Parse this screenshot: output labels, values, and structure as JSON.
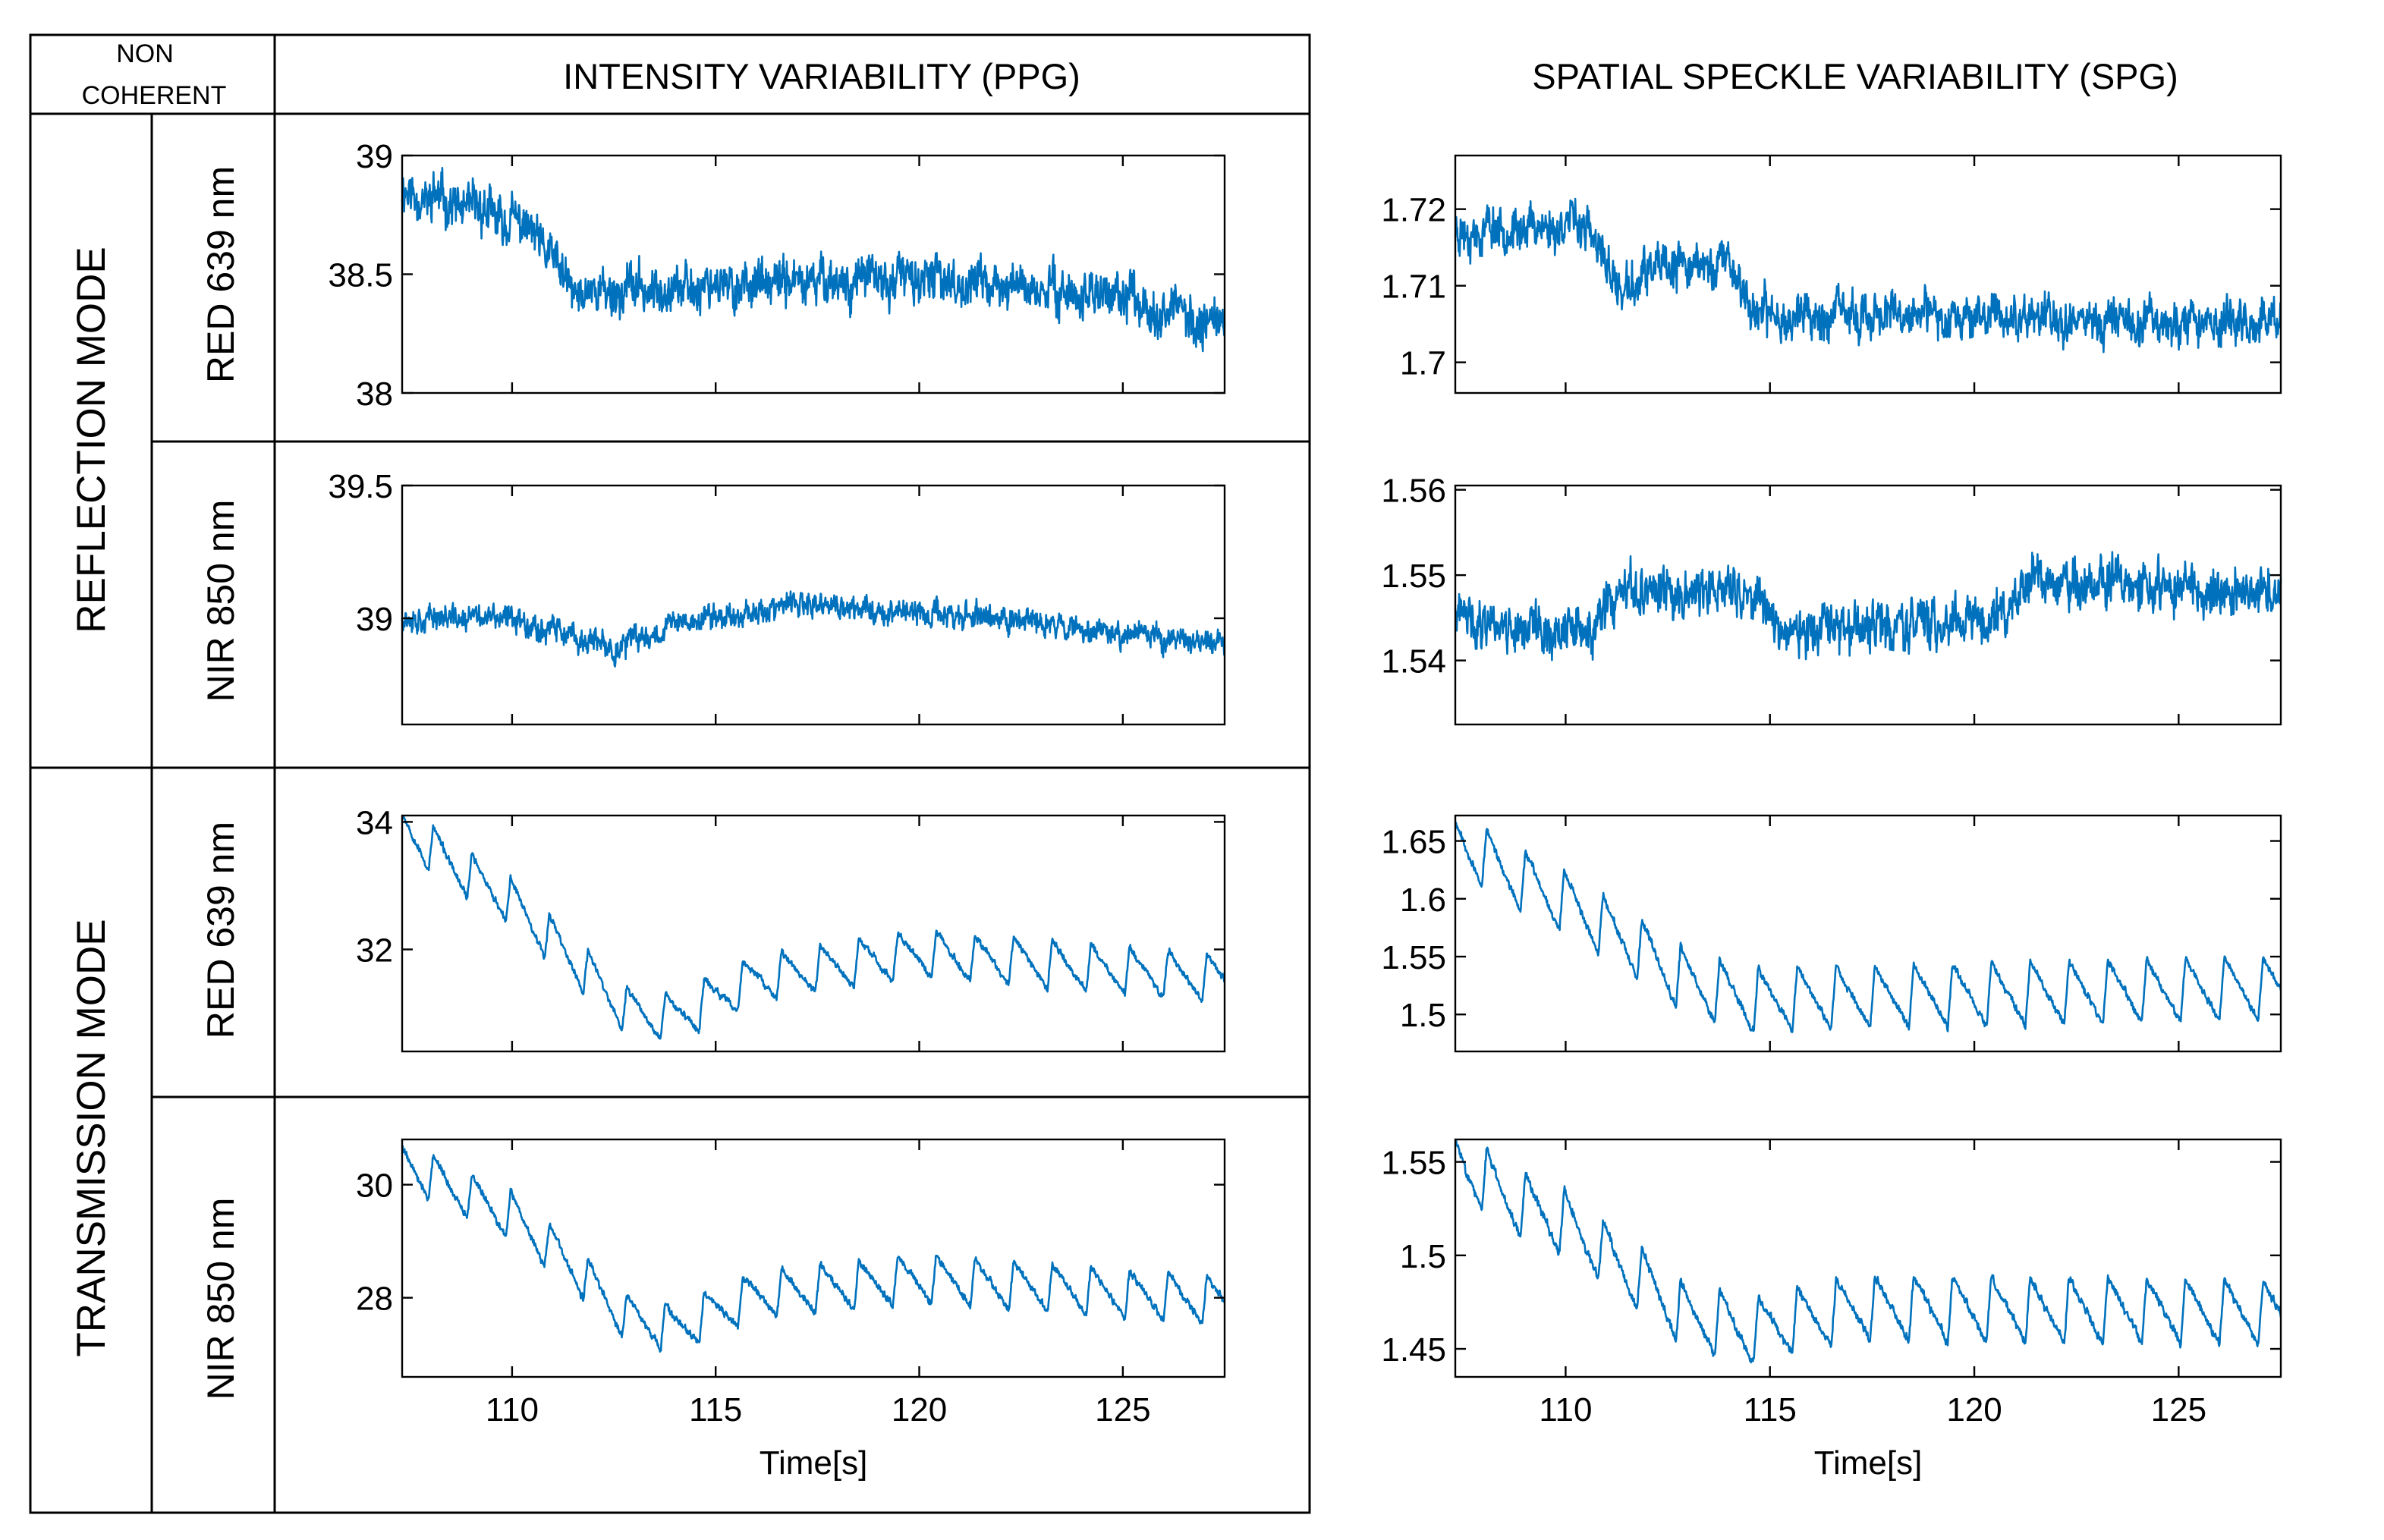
{
  "corner_label": [
    "NON",
    "COHERENT"
  ],
  "column_headers": [
    "INTENSITY VARIABILITY (PPG)",
    "SPATIAL SPECKLE VARIABILITY (SPG)"
  ],
  "mode_labels": [
    "REFLECTION MODE",
    "TRANSMISSION MODE"
  ],
  "wavelength_labels": [
    "RED 639 nm",
    "NIR 850 nm",
    "RED 639 nm",
    "NIR 850 nm"
  ],
  "colors": {
    "series": "#0072BD",
    "axis": "#000000",
    "background": "#ffffff"
  },
  "chart_data": [
    {
      "type": "line",
      "panel": "reflection-red-ppg",
      "mode": "REFLECTION MODE",
      "wavelength": "RED 639 nm",
      "signal": "INTENSITY VARIABILITY (PPG)",
      "xlim": [
        107.3,
        127.5
      ],
      "ylim": [
        38.0,
        39.0
      ],
      "yticks": [
        38,
        38.5,
        39
      ],
      "ytick_labels": [
        "38",
        "38.5",
        "39"
      ],
      "xticks": [
        110,
        115,
        120,
        125
      ],
      "trend": [
        [
          107.3,
          38.85
        ],
        [
          109.5,
          38.75
        ],
        [
          110.5,
          38.68
        ],
        [
          111.5,
          38.42
        ],
        [
          115,
          38.45
        ],
        [
          120,
          38.48
        ],
        [
          125,
          38.4
        ],
        [
          127.5,
          38.28
        ]
      ],
      "noise": 0.12,
      "beat_amp": 0.05,
      "beat_period": 0.95,
      "seed": 11,
      "xlabel": ""
    },
    {
      "type": "line",
      "panel": "reflection-red-spg",
      "mode": "REFLECTION MODE",
      "wavelength": "RED 639 nm",
      "signal": "SPATIAL SPECKLE VARIABILITY (SPG)",
      "xlim": [
        107.3,
        127.5
      ],
      "ylim": [
        1.696,
        1.727
      ],
      "yticks": [
        1.7,
        1.71,
        1.72
      ],
      "ytick_labels": [
        "1.7",
        "1.71",
        "1.72"
      ],
      "xticks": [
        110,
        115,
        120,
        125
      ],
      "trend": [
        [
          107.3,
          1.717
        ],
        [
          110.5,
          1.718
        ],
        [
          111.3,
          1.709
        ],
        [
          112.2,
          1.712
        ],
        [
          114.0,
          1.713
        ],
        [
          114.7,
          1.706
        ],
        [
          120,
          1.706
        ],
        [
          127.5,
          1.705
        ]
      ],
      "noise": 0.0035,
      "beat_amp": 0.0015,
      "beat_period": 0.95,
      "seed": 23,
      "xlabel": ""
    },
    {
      "type": "line",
      "panel": "reflection-nir-ppg",
      "mode": "REFLECTION MODE",
      "wavelength": "NIR 850 nm",
      "signal": "INTENSITY VARIABILITY (PPG)",
      "xlim": [
        107.3,
        127.5
      ],
      "ylim": [
        38.6,
        39.5
      ],
      "yticks": [
        39.0,
        39.5
      ],
      "ytick_labels": [
        "39",
        "39.5"
      ],
      "xticks": [
        110,
        115,
        120,
        125
      ],
      "trend": [
        [
          107.3,
          39.0
        ],
        [
          110,
          39.0
        ],
        [
          112.5,
          38.88
        ],
        [
          114,
          38.98
        ],
        [
          117,
          39.05
        ],
        [
          122,
          39.0
        ],
        [
          127.5,
          38.9
        ]
      ],
      "noise": 0.06,
      "beat_amp": 0.02,
      "beat_period": 0.95,
      "seed": 37,
      "xlabel": ""
    },
    {
      "type": "line",
      "panel": "reflection-nir-spg",
      "mode": "REFLECTION MODE",
      "wavelength": "NIR 850 nm",
      "signal": "SPATIAL SPECKLE VARIABILITY (SPG)",
      "xlim": [
        107.3,
        127.5
      ],
      "ylim": [
        1.5325,
        1.5605
      ],
      "yticks": [
        1.54,
        1.55,
        1.56
      ],
      "ytick_labels": [
        "1.54",
        "1.55",
        "1.56"
      ],
      "xticks": [
        110,
        115,
        120,
        125
      ],
      "trend": [
        [
          107.3,
          1.545
        ],
        [
          110.5,
          1.543
        ],
        [
          111.5,
          1.548
        ],
        [
          114.5,
          1.548
        ],
        [
          115.5,
          1.543
        ],
        [
          120.5,
          1.545
        ],
        [
          121.5,
          1.549
        ],
        [
          127.5,
          1.548
        ]
      ],
      "noise": 0.0035,
      "beat_amp": 0.001,
      "beat_period": 0.95,
      "seed": 41,
      "xlabel": ""
    },
    {
      "type": "line",
      "panel": "transmission-red-ppg",
      "mode": "TRANSMISSION MODE",
      "wavelength": "RED 639 nm",
      "signal": "INTENSITY VARIABILITY (PPG)",
      "xlim": [
        107.3,
        127.5
      ],
      "ylim": [
        30.4,
        34.1
      ],
      "yticks": [
        32,
        34
      ],
      "ytick_labels": [
        "32",
        "34"
      ],
      "xticks": [
        110,
        115,
        120,
        125
      ],
      "trend": [
        [
          107.3,
          33.9
        ],
        [
          108.5,
          33.3
        ],
        [
          110,
          32.7
        ],
        [
          111.5,
          31.8
        ],
        [
          112.8,
          31.0
        ],
        [
          114.0,
          30.9
        ],
        [
          116,
          31.5
        ],
        [
          120,
          31.9
        ],
        [
          127.5,
          31.5
        ]
      ],
      "noise": 0.07,
      "beat_amp": 0.75,
      "beat_period": 0.95,
      "seed": 53,
      "xlabel": ""
    },
    {
      "type": "line",
      "panel": "transmission-red-spg",
      "mode": "TRANSMISSION MODE",
      "wavelength": "RED 639 nm",
      "signal": "SPATIAL SPECKLE VARIABILITY (SPG)",
      "xlim": [
        107.3,
        127.5
      ],
      "ylim": [
        1.468,
        1.672
      ],
      "yticks": [
        1.5,
        1.55,
        1.6,
        1.65
      ],
      "ytick_labels": [
        "1.5",
        "1.55",
        "1.6",
        "1.65"
      ],
      "xticks": [
        110,
        115,
        120,
        125
      ],
      "trend": [
        [
          107.3,
          1.65
        ],
        [
          108.5,
          1.62
        ],
        [
          110,
          1.595
        ],
        [
          111.5,
          1.56
        ],
        [
          113,
          1.525
        ],
        [
          114.5,
          1.51
        ],
        [
          127.5,
          1.52
        ]
      ],
      "noise": 0.004,
      "beat_amp": 0.055,
      "beat_period": 0.95,
      "seed": 67,
      "xlabel": ""
    },
    {
      "type": "line",
      "panel": "transmission-nir-ppg",
      "mode": "TRANSMISSION MODE",
      "wavelength": "NIR 850 nm",
      "signal": "INTENSITY VARIABILITY (PPG)",
      "xlim": [
        107.3,
        127.5
      ],
      "ylim": [
        26.6,
        30.8
      ],
      "yticks": [
        28,
        30
      ],
      "ytick_labels": [
        "28",
        "30"
      ],
      "xticks": [
        110,
        115,
        120,
        125
      ],
      "xtick_labels": [
        "110",
        "115",
        "120",
        "125"
      ],
      "trend": [
        [
          107.3,
          30.4
        ],
        [
          108.5,
          29.9
        ],
        [
          110,
          29.4
        ],
        [
          111.5,
          28.5
        ],
        [
          112.8,
          27.6
        ],
        [
          114.0,
          27.4
        ],
        [
          116,
          28.0
        ],
        [
          120,
          28.3
        ],
        [
          127.5,
          27.9
        ]
      ],
      "noise": 0.08,
      "beat_amp": 0.85,
      "beat_period": 0.95,
      "seed": 79,
      "xlabel": "Time[s]"
    },
    {
      "type": "line",
      "panel": "transmission-nir-spg",
      "mode": "TRANSMISSION MODE",
      "wavelength": "NIR 850 nm",
      "signal": "SPATIAL SPECKLE VARIABILITY (SPG)",
      "xlim": [
        107.3,
        127.5
      ],
      "ylim": [
        1.435,
        1.562
      ],
      "yticks": [
        1.45,
        1.5,
        1.55
      ],
      "ytick_labels": [
        "1.45",
        "1.5",
        "1.55"
      ],
      "xticks": [
        110,
        115,
        120,
        125
      ],
      "xtick_labels": [
        "110",
        "115",
        "120",
        "125"
      ],
      "trend": [
        [
          107.3,
          1.55
        ],
        [
          108.5,
          1.53
        ],
        [
          110,
          1.515
        ],
        [
          111.5,
          1.49
        ],
        [
          113,
          1.465
        ],
        [
          114.5,
          1.458
        ],
        [
          117,
          1.47
        ],
        [
          127.5,
          1.468
        ]
      ],
      "noise": 0.003,
      "beat_amp": 0.035,
      "beat_period": 0.95,
      "seed": 83,
      "xlabel": "Time[s]"
    }
  ]
}
